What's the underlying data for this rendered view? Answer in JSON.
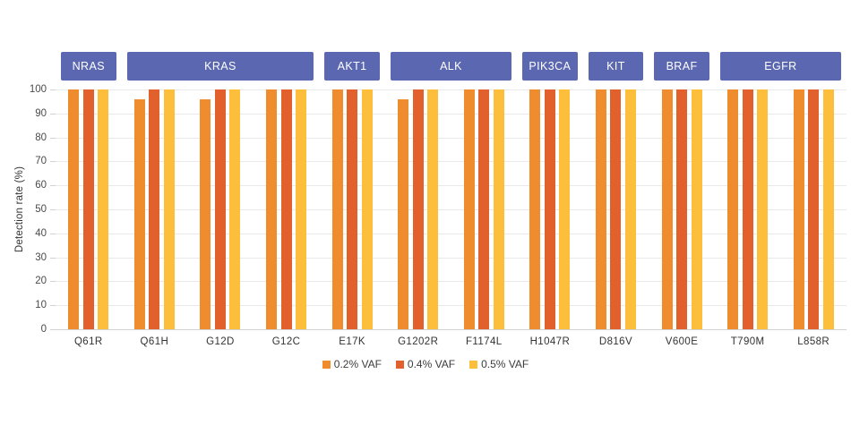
{
  "chart_data": {
    "type": "bar",
    "title": "",
    "xlabel": "",
    "ylabel": "Detection rate (%)",
    "ylim": [
      0,
      100
    ],
    "ytick_step": 10,
    "grid": true,
    "legend_position": "bottom",
    "categories": [
      "Q61R",
      "Q61H",
      "G12D",
      "G12C",
      "E17K",
      "G1202R",
      "F1174L",
      "H1047R",
      "D816V",
      "V600E",
      "T790M",
      "L858R"
    ],
    "gene_groups": [
      {
        "gene": "NRAS",
        "start": 0,
        "end": 0
      },
      {
        "gene": "KRAS",
        "start": 1,
        "end": 3
      },
      {
        "gene": "AKT1",
        "start": 4,
        "end": 4
      },
      {
        "gene": "ALK",
        "start": 5,
        "end": 6
      },
      {
        "gene": "PIK3CA",
        "start": 7,
        "end": 7
      },
      {
        "gene": "KIT",
        "start": 8,
        "end": 8
      },
      {
        "gene": "BRAF",
        "start": 9,
        "end": 9
      },
      {
        "gene": "EGFR",
        "start": 10,
        "end": 11
      }
    ],
    "series": [
      {
        "name": "0.2% VAF",
        "color": "#EE8C2E",
        "values": [
          100,
          96,
          96,
          100,
          100,
          96,
          100,
          100,
          100,
          100,
          100,
          100
        ]
      },
      {
        "name": "0.4% VAF",
        "color": "#E1602B",
        "values": [
          100,
          100,
          100,
          100,
          100,
          100,
          100,
          100,
          100,
          100,
          100,
          100
        ]
      },
      {
        "name": "0.5% VAF",
        "color": "#FCBE3B",
        "values": [
          100,
          100,
          100,
          100,
          100,
          100,
          100,
          100,
          100,
          100,
          100,
          100
        ]
      }
    ]
  },
  "colors": {
    "badge_bg": "#5B68B1",
    "badge_text": "#FFFFFF",
    "grid_line": "#E9E9E9",
    "axis_line": "#D2D2D2",
    "tick_text": "#4A4A4A",
    "label_text": "#333333"
  }
}
